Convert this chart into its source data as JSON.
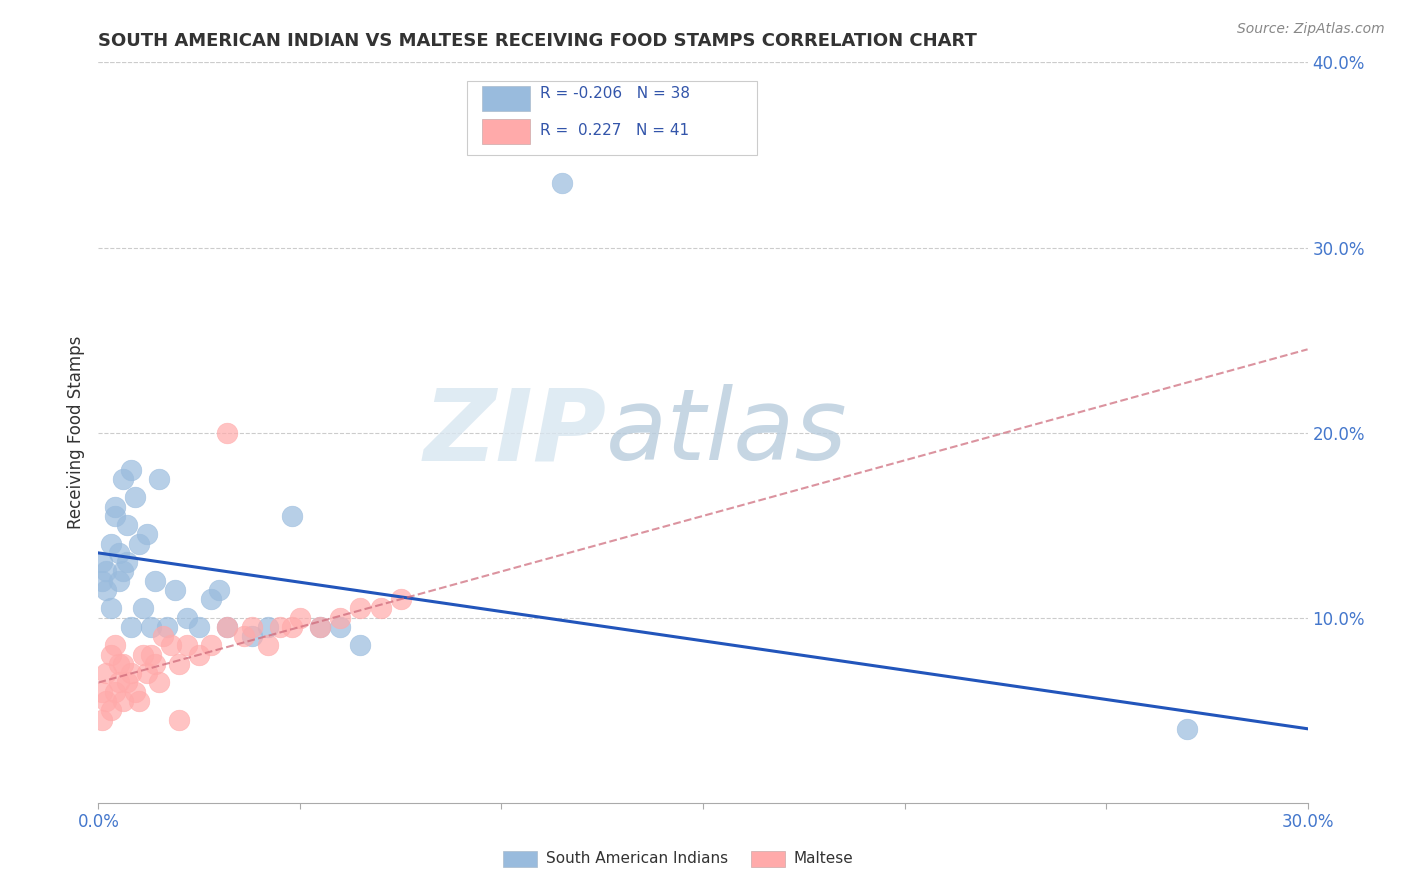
{
  "title": "SOUTH AMERICAN INDIAN VS MALTESE RECEIVING FOOD STAMPS CORRELATION CHART",
  "source": "Source: ZipAtlas.com",
  "ylabel": "Receiving Food Stamps",
  "xlim": [
    0.0,
    0.3
  ],
  "ylim": [
    0.0,
    0.4
  ],
  "xticks": [
    0.0,
    0.05,
    0.1,
    0.15,
    0.2,
    0.25,
    0.3
  ],
  "xticklabels_sparse": [
    "0.0%",
    "",
    "",
    "",
    "",
    "",
    "30.0%"
  ],
  "yticks_right": [
    0.1,
    0.2,
    0.3,
    0.4
  ],
  "ytick_right_labels": [
    "10.0%",
    "20.0%",
    "30.0%",
    "40.0%"
  ],
  "grid_color": "#cccccc",
  "blue_color": "#99bbdd",
  "pink_color": "#ffaaaa",
  "blue_line_color": "#2255bb",
  "pink_line_color": "#cc6677",
  "background_color": "#ffffff",
  "R_blue": -0.206,
  "N_blue": 38,
  "R_pink": 0.227,
  "N_pink": 41,
  "legend_label_blue": "South American Indians",
  "legend_label_pink": "Maltese",
  "watermark_zip": "ZIP",
  "watermark_atlas": "atlas",
  "blue_line_y0": 0.135,
  "blue_line_y1": 0.04,
  "pink_line_y0": 0.065,
  "pink_line_y1": 0.245,
  "blue_points_x": [
    0.001,
    0.001,
    0.002,
    0.002,
    0.003,
    0.003,
    0.004,
    0.004,
    0.005,
    0.005,
    0.006,
    0.006,
    0.007,
    0.007,
    0.008,
    0.008,
    0.009,
    0.01,
    0.011,
    0.012,
    0.013,
    0.014,
    0.015,
    0.017,
    0.019,
    0.022,
    0.025,
    0.028,
    0.03,
    0.032,
    0.038,
    0.042,
    0.048,
    0.055,
    0.06,
    0.065,
    0.27,
    0.115
  ],
  "blue_points_y": [
    0.13,
    0.12,
    0.115,
    0.125,
    0.14,
    0.105,
    0.155,
    0.16,
    0.12,
    0.135,
    0.175,
    0.125,
    0.15,
    0.13,
    0.18,
    0.095,
    0.165,
    0.14,
    0.105,
    0.145,
    0.095,
    0.12,
    0.175,
    0.095,
    0.115,
    0.1,
    0.095,
    0.11,
    0.115,
    0.095,
    0.09,
    0.095,
    0.155,
    0.095,
    0.095,
    0.085,
    0.04,
    0.335
  ],
  "pink_points_x": [
    0.001,
    0.001,
    0.002,
    0.002,
    0.003,
    0.003,
    0.004,
    0.004,
    0.005,
    0.005,
    0.006,
    0.006,
    0.007,
    0.008,
    0.009,
    0.01,
    0.011,
    0.012,
    0.013,
    0.014,
    0.015,
    0.016,
    0.018,
    0.02,
    0.022,
    0.025,
    0.028,
    0.032,
    0.036,
    0.038,
    0.042,
    0.045,
    0.048,
    0.05,
    0.055,
    0.06,
    0.065,
    0.07,
    0.075,
    0.032,
    0.02
  ],
  "pink_points_y": [
    0.06,
    0.045,
    0.055,
    0.07,
    0.05,
    0.08,
    0.06,
    0.085,
    0.075,
    0.065,
    0.055,
    0.075,
    0.065,
    0.07,
    0.06,
    0.055,
    0.08,
    0.07,
    0.08,
    0.075,
    0.065,
    0.09,
    0.085,
    0.075,
    0.085,
    0.08,
    0.085,
    0.095,
    0.09,
    0.095,
    0.085,
    0.095,
    0.095,
    0.1,
    0.095,
    0.1,
    0.105,
    0.105,
    0.11,
    0.2,
    0.045
  ]
}
